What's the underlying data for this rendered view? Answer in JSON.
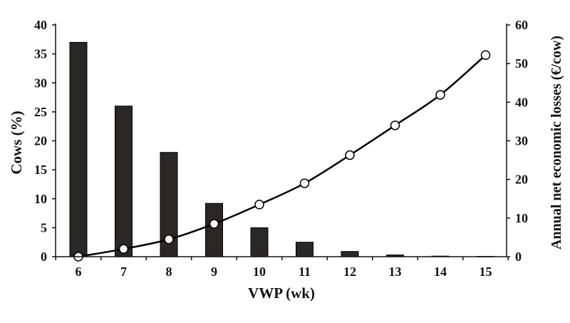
{
  "chart_data": {
    "type": "bar+line",
    "title": "",
    "xlabel": "VWP (wk)",
    "ylabel_left": "Cows (%)",
    "ylabel_right": "Annual net economic losses (€/cow)",
    "categories": [
      "6",
      "7",
      "8",
      "9",
      "10",
      "11",
      "12",
      "13",
      "14",
      "15"
    ],
    "ylim_left": [
      0,
      40
    ],
    "yticks_left": [
      0,
      5,
      10,
      15,
      20,
      25,
      30,
      35,
      40
    ],
    "ylim_right": [
      0,
      60
    ],
    "yticks_right": [
      0,
      10,
      20,
      30,
      40,
      50,
      60
    ],
    "grid": false,
    "series": [
      {
        "type": "bar",
        "axis": "left",
        "values": [
          37,
          26,
          18,
          9.2,
          5.0,
          2.5,
          0.9,
          0.3,
          0.1,
          0.05
        ],
        "color": "#2a2727"
      },
      {
        "type": "line",
        "axis": "right",
        "marker": "open-circle",
        "values": [
          0,
          2.0,
          4.5,
          8.5,
          13.5,
          19.0,
          26.3,
          34.0,
          41.9,
          52.2
        ],
        "color": "#000000"
      }
    ]
  }
}
